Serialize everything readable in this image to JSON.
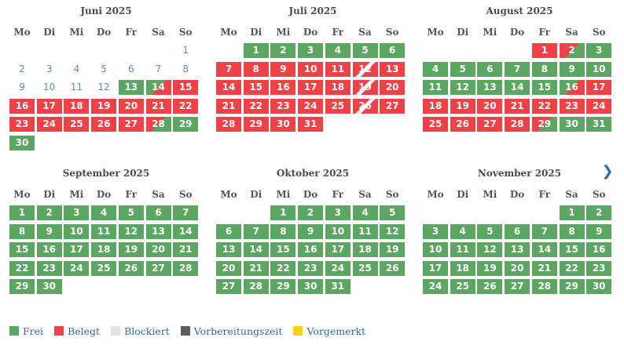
{
  "colors": {
    "free": "#5ba660",
    "booked": "#ef4146",
    "blocked": "#e2e2e2",
    "preparation": "#5b5f63",
    "reserved": "#f6d30e",
    "link": "#2f6aa8"
  },
  "weekdays": [
    "Mo",
    "Di",
    "Mi",
    "Do",
    "Fr",
    "Sa",
    "So"
  ],
  "nav": {
    "next_icon": "chevron-right-icon",
    "next_glyph": "❯"
  },
  "months": [
    {
      "name": "Juni 2025",
      "offset": 6,
      "days": [
        {
          "d": "1",
          "s": "past"
        },
        {
          "d": "2",
          "s": "past"
        },
        {
          "d": "3",
          "s": "past"
        },
        {
          "d": "4",
          "s": "past"
        },
        {
          "d": "5",
          "s": "past"
        },
        {
          "d": "6",
          "s": "past"
        },
        {
          "d": "7",
          "s": "past"
        },
        {
          "d": "8",
          "s": "past"
        },
        {
          "d": "9",
          "s": "past"
        },
        {
          "d": "10",
          "s": "past"
        },
        {
          "d": "11",
          "s": "past"
        },
        {
          "d": "12",
          "s": "past"
        },
        {
          "d": "13",
          "s": "free"
        },
        {
          "d": "14",
          "s": "ci"
        },
        {
          "d": "15",
          "s": "booked"
        },
        {
          "d": "16",
          "s": "booked"
        },
        {
          "d": "17",
          "s": "booked"
        },
        {
          "d": "18",
          "s": "booked"
        },
        {
          "d": "19",
          "s": "booked"
        },
        {
          "d": "20",
          "s": "booked"
        },
        {
          "d": "21",
          "s": "booked"
        },
        {
          "d": "22",
          "s": "booked"
        },
        {
          "d": "23",
          "s": "booked"
        },
        {
          "d": "24",
          "s": "booked"
        },
        {
          "d": "25",
          "s": "booked"
        },
        {
          "d": "26",
          "s": "booked"
        },
        {
          "d": "27",
          "s": "booked"
        },
        {
          "d": "28",
          "s": "co"
        },
        {
          "d": "29",
          "s": "free"
        },
        {
          "d": "30",
          "s": "free"
        }
      ]
    },
    {
      "name": "Juli 2025",
      "offset": 1,
      "days": [
        {
          "d": "1",
          "s": "free"
        },
        {
          "d": "2",
          "s": "free"
        },
        {
          "d": "3",
          "s": "free"
        },
        {
          "d": "4",
          "s": "free"
        },
        {
          "d": "5",
          "s": "free"
        },
        {
          "d": "6",
          "s": "free"
        },
        {
          "d": "7",
          "s": "booked"
        },
        {
          "d": "8",
          "s": "booked"
        },
        {
          "d": "9",
          "s": "booked"
        },
        {
          "d": "10",
          "s": "booked"
        },
        {
          "d": "11",
          "s": "booked"
        },
        {
          "d": "12",
          "s": "cc"
        },
        {
          "d": "13",
          "s": "booked"
        },
        {
          "d": "14",
          "s": "booked"
        },
        {
          "d": "15",
          "s": "booked"
        },
        {
          "d": "16",
          "s": "booked"
        },
        {
          "d": "17",
          "s": "booked"
        },
        {
          "d": "18",
          "s": "booked"
        },
        {
          "d": "19",
          "s": "cc"
        },
        {
          "d": "20",
          "s": "booked"
        },
        {
          "d": "21",
          "s": "booked"
        },
        {
          "d": "22",
          "s": "booked"
        },
        {
          "d": "23",
          "s": "booked"
        },
        {
          "d": "24",
          "s": "booked"
        },
        {
          "d": "25",
          "s": "booked"
        },
        {
          "d": "26",
          "s": "cc"
        },
        {
          "d": "27",
          "s": "booked"
        },
        {
          "d": "28",
          "s": "booked"
        },
        {
          "d": "29",
          "s": "booked"
        },
        {
          "d": "30",
          "s": "booked"
        },
        {
          "d": "31",
          "s": "booked"
        }
      ]
    },
    {
      "name": "August 2025",
      "offset": 4,
      "days": [
        {
          "d": "1",
          "s": "booked"
        },
        {
          "d": "2",
          "s": "co"
        },
        {
          "d": "3",
          "s": "free"
        },
        {
          "d": "4",
          "s": "free"
        },
        {
          "d": "5",
          "s": "free"
        },
        {
          "d": "6",
          "s": "free"
        },
        {
          "d": "7",
          "s": "free"
        },
        {
          "d": "8",
          "s": "free"
        },
        {
          "d": "9",
          "s": "free"
        },
        {
          "d": "10",
          "s": "free"
        },
        {
          "d": "11",
          "s": "free"
        },
        {
          "d": "12",
          "s": "free"
        },
        {
          "d": "13",
          "s": "free"
        },
        {
          "d": "14",
          "s": "free"
        },
        {
          "d": "15",
          "s": "free"
        },
        {
          "d": "16",
          "s": "ci"
        },
        {
          "d": "17",
          "s": "booked"
        },
        {
          "d": "18",
          "s": "booked"
        },
        {
          "d": "19",
          "s": "booked"
        },
        {
          "d": "20",
          "s": "booked"
        },
        {
          "d": "21",
          "s": "booked"
        },
        {
          "d": "22",
          "s": "booked"
        },
        {
          "d": "23",
          "s": "booked"
        },
        {
          "d": "24",
          "s": "booked"
        },
        {
          "d": "25",
          "s": "booked"
        },
        {
          "d": "26",
          "s": "booked"
        },
        {
          "d": "27",
          "s": "booked"
        },
        {
          "d": "28",
          "s": "booked"
        },
        {
          "d": "29",
          "s": "co"
        },
        {
          "d": "30",
          "s": "free"
        },
        {
          "d": "31",
          "s": "free"
        }
      ]
    },
    {
      "name": "September 2025",
      "offset": 0,
      "days": [
        {
          "d": "1",
          "s": "free"
        },
        {
          "d": "2",
          "s": "free"
        },
        {
          "d": "3",
          "s": "free"
        },
        {
          "d": "4",
          "s": "free"
        },
        {
          "d": "5",
          "s": "free"
        },
        {
          "d": "6",
          "s": "free"
        },
        {
          "d": "7",
          "s": "free"
        },
        {
          "d": "8",
          "s": "free"
        },
        {
          "d": "9",
          "s": "free"
        },
        {
          "d": "10",
          "s": "free"
        },
        {
          "d": "11",
          "s": "free"
        },
        {
          "d": "12",
          "s": "free"
        },
        {
          "d": "13",
          "s": "free"
        },
        {
          "d": "14",
          "s": "free"
        },
        {
          "d": "15",
          "s": "free"
        },
        {
          "d": "16",
          "s": "free"
        },
        {
          "d": "17",
          "s": "free"
        },
        {
          "d": "18",
          "s": "free"
        },
        {
          "d": "19",
          "s": "free"
        },
        {
          "d": "20",
          "s": "free"
        },
        {
          "d": "21",
          "s": "free"
        },
        {
          "d": "22",
          "s": "free"
        },
        {
          "d": "23",
          "s": "free"
        },
        {
          "d": "24",
          "s": "free"
        },
        {
          "d": "25",
          "s": "free"
        },
        {
          "d": "26",
          "s": "free"
        },
        {
          "d": "27",
          "s": "free"
        },
        {
          "d": "28",
          "s": "free"
        },
        {
          "d": "29",
          "s": "free"
        },
        {
          "d": "30",
          "s": "free"
        }
      ]
    },
    {
      "name": "Oktober 2025",
      "offset": 2,
      "days": [
        {
          "d": "1",
          "s": "free"
        },
        {
          "d": "2",
          "s": "free"
        },
        {
          "d": "3",
          "s": "free"
        },
        {
          "d": "4",
          "s": "free"
        },
        {
          "d": "5",
          "s": "free"
        },
        {
          "d": "6",
          "s": "free"
        },
        {
          "d": "7",
          "s": "free"
        },
        {
          "d": "8",
          "s": "free"
        },
        {
          "d": "9",
          "s": "free"
        },
        {
          "d": "10",
          "s": "free"
        },
        {
          "d": "11",
          "s": "free"
        },
        {
          "d": "12",
          "s": "free"
        },
        {
          "d": "13",
          "s": "free"
        },
        {
          "d": "14",
          "s": "free"
        },
        {
          "d": "15",
          "s": "free"
        },
        {
          "d": "16",
          "s": "free"
        },
        {
          "d": "17",
          "s": "free"
        },
        {
          "d": "18",
          "s": "free"
        },
        {
          "d": "19",
          "s": "free"
        },
        {
          "d": "20",
          "s": "free"
        },
        {
          "d": "21",
          "s": "free"
        },
        {
          "d": "22",
          "s": "free"
        },
        {
          "d": "23",
          "s": "free"
        },
        {
          "d": "24",
          "s": "free"
        },
        {
          "d": "25",
          "s": "free"
        },
        {
          "d": "26",
          "s": "free"
        },
        {
          "d": "27",
          "s": "free"
        },
        {
          "d": "28",
          "s": "free"
        },
        {
          "d": "29",
          "s": "free"
        },
        {
          "d": "30",
          "s": "free"
        },
        {
          "d": "31",
          "s": "free"
        }
      ]
    },
    {
      "name": "November 2025",
      "offset": 5,
      "days": [
        {
          "d": "1",
          "s": "free"
        },
        {
          "d": "2",
          "s": "free"
        },
        {
          "d": "3",
          "s": "free"
        },
        {
          "d": "4",
          "s": "free"
        },
        {
          "d": "5",
          "s": "free"
        },
        {
          "d": "6",
          "s": "free"
        },
        {
          "d": "7",
          "s": "free"
        },
        {
          "d": "8",
          "s": "free"
        },
        {
          "d": "9",
          "s": "free"
        },
        {
          "d": "10",
          "s": "free"
        },
        {
          "d": "11",
          "s": "free"
        },
        {
          "d": "12",
          "s": "free"
        },
        {
          "d": "13",
          "s": "free"
        },
        {
          "d": "14",
          "s": "free"
        },
        {
          "d": "15",
          "s": "free"
        },
        {
          "d": "16",
          "s": "free"
        },
        {
          "d": "17",
          "s": "free"
        },
        {
          "d": "18",
          "s": "free"
        },
        {
          "d": "19",
          "s": "free"
        },
        {
          "d": "20",
          "s": "free"
        },
        {
          "d": "21",
          "s": "free"
        },
        {
          "d": "22",
          "s": "free"
        },
        {
          "d": "23",
          "s": "free"
        },
        {
          "d": "24",
          "s": "free"
        },
        {
          "d": "25",
          "s": "free"
        },
        {
          "d": "26",
          "s": "free"
        },
        {
          "d": "27",
          "s": "free"
        },
        {
          "d": "28",
          "s": "free"
        },
        {
          "d": "29",
          "s": "free"
        },
        {
          "d": "30",
          "s": "free"
        }
      ]
    }
  ],
  "legend": [
    {
      "key": "free",
      "label": "Frei"
    },
    {
      "key": "booked",
      "label": "Belegt"
    },
    {
      "key": "blocked",
      "label": "Blockiert"
    },
    {
      "key": "preparation",
      "label": "Vorbereitungszeit"
    },
    {
      "key": "reserved",
      "label": "Vorgemerkt"
    }
  ]
}
